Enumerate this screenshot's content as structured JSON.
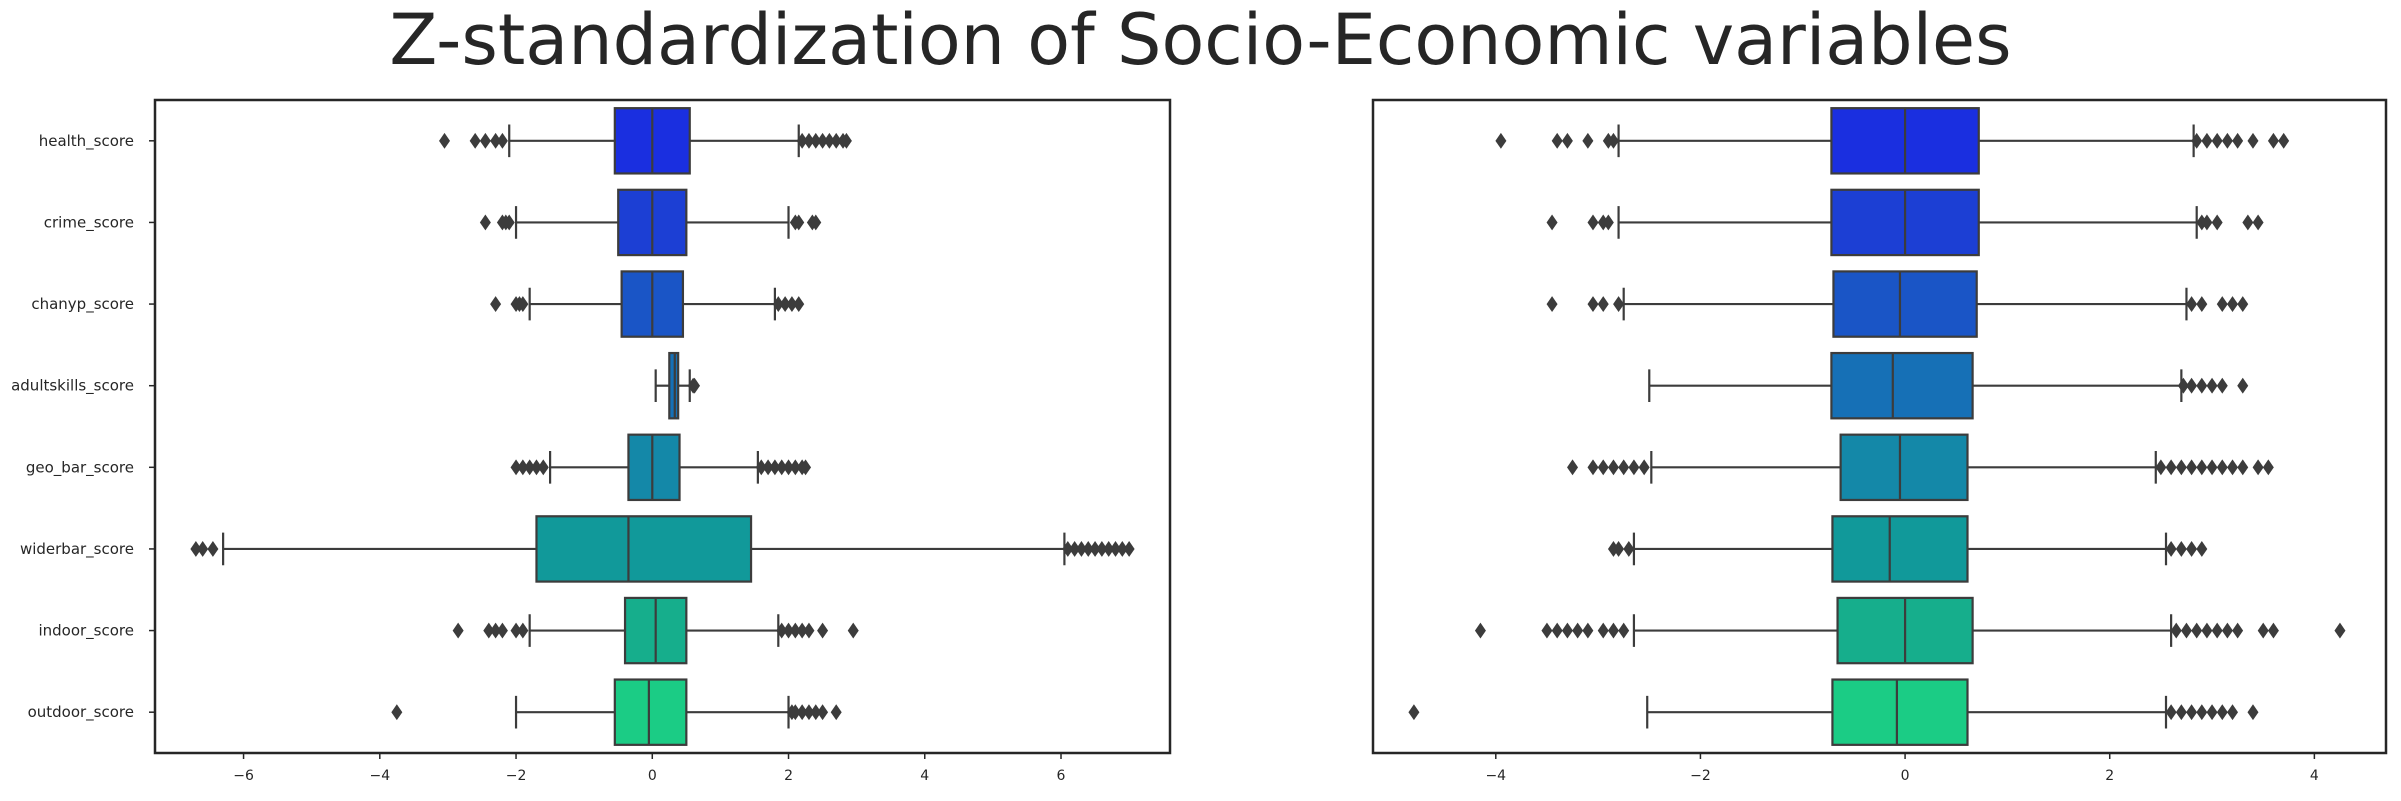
{
  "figure_title": "Z-standardization of Socio-Economic variables",
  "colors": {
    "stroke": "#3c3c3c",
    "frame": "#262626",
    "boxes": [
      "#1a2fe0",
      "#1c3fd4",
      "#1a55c6",
      "#1670b6",
      "#1488a8",
      "#11999a",
      "#16ae8c",
      "#1bcc85"
    ]
  },
  "chart_data": [
    {
      "type": "box",
      "orientation": "horizontal",
      "categories": [
        "health_score",
        "crime_score",
        "chanyp_score",
        "adultskills_score",
        "geo_bar_score",
        "widerbar_score",
        "indoor_score",
        "outdoor_score"
      ],
      "x_ticks": [
        -6,
        -4,
        -2,
        0,
        2,
        4,
        6
      ],
      "xlim": [
        -7.3,
        7.6
      ],
      "grid": false,
      "series": [
        {
          "q1": -0.55,
          "median": 0.0,
          "q3": 0.55,
          "whisker_low": -2.1,
          "whisker_high": 2.15,
          "outliers": [
            -3.05,
            -2.6,
            -2.45,
            -2.3,
            -2.2,
            2.2,
            2.3,
            2.4,
            2.5,
            2.6,
            2.7,
            2.8,
            2.85
          ]
        },
        {
          "q1": -0.5,
          "median": 0.0,
          "q3": 0.5,
          "whisker_low": -2.0,
          "whisker_high": 2.0,
          "outliers": [
            -2.45,
            -2.2,
            -2.15,
            -2.1,
            2.1,
            2.15,
            2.35,
            2.4
          ]
        },
        {
          "q1": -0.45,
          "median": 0.0,
          "q3": 0.45,
          "whisker_low": -1.8,
          "whisker_high": 1.8,
          "outliers": [
            -2.3,
            -2.0,
            -1.95,
            -1.9,
            1.85,
            1.95,
            2.05,
            2.15
          ]
        },
        {
          "q1": 0.25,
          "median": 0.33,
          "q3": 0.38,
          "whisker_low": 0.05,
          "whisker_high": 0.55,
          "outliers": [
            0.6,
            0.62
          ]
        },
        {
          "q1": -0.35,
          "median": 0.0,
          "q3": 0.4,
          "whisker_low": -1.5,
          "whisker_high": 1.55,
          "outliers": [
            -2.0,
            -1.9,
            -1.8,
            -1.7,
            -1.6,
            1.6,
            1.7,
            1.8,
            1.9,
            2.0,
            2.1,
            2.2,
            2.25
          ]
        },
        {
          "q1": -1.7,
          "median": -0.35,
          "q3": 1.45,
          "whisker_low": -6.3,
          "whisker_high": 6.05,
          "outliers": [
            -6.7,
            -6.6,
            -6.45,
            6.1,
            6.2,
            6.3,
            6.4,
            6.5,
            6.6,
            6.7,
            6.8,
            6.9,
            7.0
          ]
        },
        {
          "q1": -0.4,
          "median": 0.05,
          "q3": 0.5,
          "whisker_low": -1.8,
          "whisker_high": 1.85,
          "outliers": [
            -2.85,
            -2.4,
            -2.3,
            -2.2,
            -2.0,
            -1.9,
            1.9,
            2.0,
            2.1,
            2.2,
            2.3,
            2.5,
            2.95
          ]
        },
        {
          "q1": -0.55,
          "median": -0.05,
          "q3": 0.5,
          "whisker_low": -2.0,
          "whisker_high": 2.0,
          "outliers": [
            -3.75,
            2.05,
            2.1,
            2.2,
            2.3,
            2.4,
            2.5,
            2.7
          ]
        }
      ]
    },
    {
      "type": "box",
      "orientation": "horizontal",
      "categories": [
        "health_score",
        "crime_score",
        "chanyp_score",
        "adultskills_score",
        "geo_bar_score",
        "widerbar_score",
        "indoor_score",
        "outdoor_score"
      ],
      "x_ticks": [
        -4,
        -2,
        0,
        2,
        4
      ],
      "xlim": [
        -5.2,
        4.7
      ],
      "grid": false,
      "series": [
        {
          "q1": -0.72,
          "median": 0.0,
          "q3": 0.72,
          "whisker_low": -2.8,
          "whisker_high": 2.82,
          "outliers": [
            -3.95,
            -3.4,
            -3.3,
            -3.1,
            -2.9,
            -2.85,
            2.85,
            2.95,
            3.05,
            3.15,
            3.25,
            3.4,
            3.6,
            3.7
          ]
        },
        {
          "q1": -0.72,
          "median": 0.0,
          "q3": 0.72,
          "whisker_low": -2.8,
          "whisker_high": 2.85,
          "outliers": [
            -3.45,
            -3.05,
            -2.95,
            -2.9,
            2.9,
            2.95,
            3.05,
            3.35,
            3.45
          ]
        },
        {
          "q1": -0.7,
          "median": -0.05,
          "q3": 0.7,
          "whisker_low": -2.75,
          "whisker_high": 2.75,
          "outliers": [
            -3.45,
            -3.05,
            -2.95,
            -2.8,
            2.8,
            2.9,
            3.1,
            3.2,
            3.3
          ]
        },
        {
          "q1": -0.72,
          "median": -0.12,
          "q3": 0.66,
          "whisker_low": -2.5,
          "whisker_high": 2.7,
          "outliers": [
            2.72,
            2.8,
            2.9,
            3.0,
            3.1,
            3.3
          ]
        },
        {
          "q1": -0.63,
          "median": -0.05,
          "q3": 0.61,
          "whisker_low": -2.48,
          "whisker_high": 2.45,
          "outliers": [
            -3.25,
            -3.05,
            -2.95,
            -2.85,
            -2.75,
            -2.65,
            -2.55,
            2.5,
            2.6,
            2.7,
            2.8,
            2.9,
            3.0,
            3.1,
            3.2,
            3.3,
            3.45,
            3.55
          ]
        },
        {
          "q1": -0.71,
          "median": -0.15,
          "q3": 0.61,
          "whisker_low": -2.65,
          "whisker_high": 2.55,
          "outliers": [
            -2.85,
            -2.8,
            -2.7,
            2.6,
            2.7,
            2.8,
            2.9
          ]
        },
        {
          "q1": -0.66,
          "median": 0.0,
          "q3": 0.66,
          "whisker_low": -2.65,
          "whisker_high": 2.6,
          "outliers": [
            -4.15,
            -3.5,
            -3.4,
            -3.3,
            -3.2,
            -3.1,
            -2.95,
            -2.85,
            -2.75,
            2.65,
            2.75,
            2.85,
            2.95,
            3.05,
            3.15,
            3.25,
            3.5,
            3.6,
            4.25
          ]
        },
        {
          "q1": -0.71,
          "median": -0.08,
          "q3": 0.61,
          "whisker_low": -2.52,
          "whisker_high": 2.55,
          "outliers": [
            -4.8,
            2.6,
            2.7,
            2.8,
            2.9,
            3.0,
            3.1,
            3.2,
            3.4
          ]
        }
      ]
    }
  ]
}
